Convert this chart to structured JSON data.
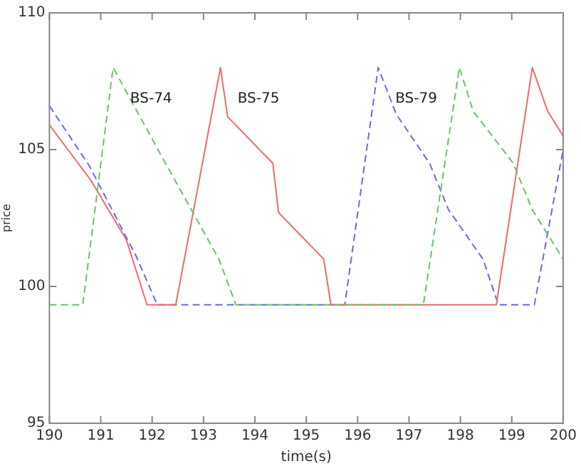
{
  "chart_data": {
    "type": "line",
    "xlabel": "time(s)",
    "ylabel": "price",
    "xlim": [
      190,
      200
    ],
    "xticks": [
      190,
      191,
      192,
      193,
      194,
      195,
      196,
      197,
      198,
      199,
      200
    ],
    "ylim": [
      95,
      110
    ],
    "yticks": [
      95,
      100,
      105,
      110
    ],
    "grid": false,
    "legend": false,
    "marker": "none",
    "series": [
      {
        "name": "BS-74",
        "color": "#66c466",
        "line_style": "dashed",
        "x": [
          190,
          190.65,
          191.24,
          192.26,
          193.3,
          193.63,
          197.28,
          197.98,
          198.25,
          199.03,
          199.4,
          200
        ],
        "values": [
          99.33,
          99.33,
          108,
          104.5,
          101,
          99.33,
          99.33,
          108,
          106.4,
          104.5,
          102.8,
          101
        ]
      },
      {
        "name": "BS-75",
        "color": "#f06a6a",
        "line_style": "solid",
        "x": [
          190,
          190.8,
          191.5,
          191.9,
          192.46,
          193.33,
          193.47,
          194.35,
          194.46,
          195.34,
          195.48,
          198.7,
          199.4,
          199.7,
          200
        ],
        "values": [
          105.9,
          103.9,
          101.7,
          99.33,
          99.33,
          108,
          106.2,
          104.5,
          102.7,
          101,
          99.33,
          99.33,
          108,
          106.4,
          105.5
        ]
      },
      {
        "name": "BS-79",
        "color": "#6a6ae6",
        "line_style": "dashed",
        "x": [
          190,
          190.78,
          191.69,
          192.1,
          195.75,
          196.4,
          196.75,
          197.4,
          197.77,
          198.44,
          198.74,
          199.44,
          200
        ],
        "values": [
          106.6,
          104.4,
          101.1,
          99.33,
          99.33,
          108,
          106.3,
          104.5,
          102.8,
          101,
          99.33,
          99.33,
          105
        ]
      }
    ]
  }
}
